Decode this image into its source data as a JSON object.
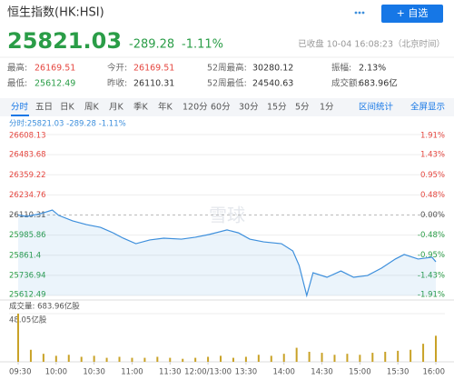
{
  "header": {
    "title": "恒生指数(HK:HSI)",
    "button": "+ 自选",
    "price": "25821.03",
    "change": "-289.28",
    "change_pct": "-1.11%",
    "status": "已收盘 10-04 16:08:23（北京时间）"
  },
  "stats": [
    [
      {
        "label": "最高:",
        "value": "26169.51",
        "color": "#e5463f"
      },
      {
        "label": "今开:",
        "value": "26169.51",
        "color": "#e5463f"
      },
      {
        "label": "52周最高:",
        "value": "30280.12",
        "color": "#333333"
      },
      {
        "label": "振幅:",
        "value": "2.13%",
        "color": "#333333"
      }
    ],
    [
      {
        "label": "最低:",
        "value": "25612.49",
        "color": "#2a9d47"
      },
      {
        "label": "昨收:",
        "value": "26110.31",
        "color": "#333333"
      },
      {
        "label": "52周最低:",
        "value": "24540.63",
        "color": "#333333"
      },
      {
        "label": "成交额:",
        "value": "683.96亿",
        "color": "#333333"
      }
    ]
  ],
  "tabs": [
    "分时",
    "五日",
    "日K",
    "周K",
    "月K",
    "季K",
    "年K",
    "120分",
    "60分",
    "30分",
    "15分",
    "5分",
    "1分"
  ],
  "active_tab": 0,
  "tab_actions": [
    "区间统计",
    "全屏显示"
  ],
  "watermark": "雪球",
  "chart_data": [
    {
      "type": "line",
      "subtitle": "分时:25821.03 -289.28 -1.11%",
      "x": [
        0,
        7,
        18,
        27,
        32,
        43,
        54,
        65,
        75,
        83,
        93,
        104,
        115,
        129,
        140,
        151,
        165,
        174,
        183,
        194,
        208,
        217,
        222,
        228,
        233,
        244,
        255,
        265,
        276,
        287,
        298,
        305,
        316,
        327,
        330
      ],
      "series": [
        {
          "color": "#3d8fdc",
          "values": [
            26110,
            26102,
            26119,
            26141,
            26108,
            26074,
            26051,
            26034,
            26000,
            25967,
            25933,
            25956,
            25967,
            25961,
            25973,
            25990,
            26018,
            26000,
            25961,
            25944,
            25933,
            25888,
            25798,
            25612,
            25753,
            25725,
            25764,
            25725,
            25736,
            25781,
            25838,
            25866,
            25838,
            25849,
            25821
          ]
        }
      ],
      "xlim": [
        0,
        330
      ],
      "ylim": [
        25612.49,
        26608.13
      ],
      "yticks": [
        26608.13,
        26483.68,
        26359.22,
        26234.76,
        26110.31,
        25985.86,
        25861.4,
        25736.94,
        25612.49
      ],
      "y2lim": [
        -1.91,
        1.91
      ],
      "y2ticks": [
        {
          "value": 1.91,
          "label": "1.91%"
        },
        {
          "value": 1.43,
          "label": "1.43%"
        },
        {
          "value": 0.95,
          "label": "0.95%"
        },
        {
          "value": 0.48,
          "label": "0.48%"
        },
        {
          "value": 0,
          "label": "0.00%"
        },
        {
          "value": -0.48,
          "label": "-0.48%"
        },
        {
          "value": -0.95,
          "label": "-0.95%"
        },
        {
          "value": -1.43,
          "label": "-1.43%"
        },
        {
          "value": -1.91,
          "label": "-1.91%"
        }
      ],
      "grid": true
    },
    {
      "type": "bar",
      "title": "成交量: 683.96亿股",
      "color": "#c9a227",
      "x": [
        0,
        10,
        20,
        30,
        40,
        50,
        60,
        70,
        80,
        90,
        100,
        110,
        120,
        130,
        140,
        150,
        160,
        170,
        180,
        190,
        200,
        210,
        220,
        230,
        240,
        250,
        260,
        270,
        280,
        290,
        300,
        310,
        320,
        330
      ],
      "values": [
        48.05,
        12,
        8,
        6,
        7,
        5,
        6,
        4,
        5,
        4,
        4,
        5,
        4,
        3,
        4,
        5,
        6,
        4,
        5,
        7,
        6,
        8,
        14,
        10,
        9,
        7,
        8,
        7,
        9,
        10,
        11,
        12,
        18,
        26
      ],
      "xlim": [
        0,
        330
      ],
      "ylim": [
        0,
        48.05
      ],
      "yticks": [
        {
          "value": 48.05,
          "label": "48.05亿股"
        }
      ],
      "xticks": [
        {
          "value": 0,
          "label": "09:30"
        },
        {
          "value": 30,
          "label": "10:00"
        },
        {
          "value": 60,
          "label": "10:30"
        },
        {
          "value": 90,
          "label": "11:00"
        },
        {
          "value": 120,
          "label": "11:30"
        },
        {
          "value": 150,
          "label": "12:00/13:00"
        },
        {
          "value": 180,
          "label": "13:30"
        },
        {
          "value": 210,
          "label": "14:00"
        },
        {
          "value": 240,
          "label": "14:30"
        },
        {
          "value": 270,
          "label": "15:00"
        },
        {
          "value": 300,
          "label": "15:30"
        },
        {
          "value": 330,
          "label": "16:00"
        }
      ]
    }
  ]
}
